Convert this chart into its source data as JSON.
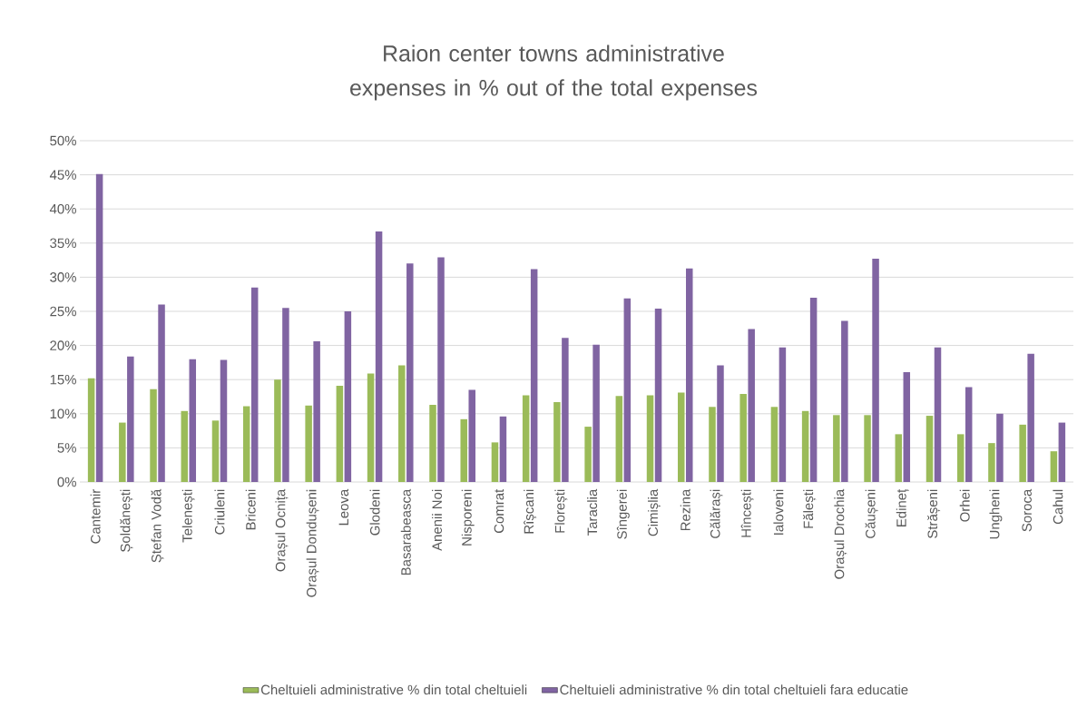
{
  "chart_data": {
    "type": "bar",
    "title": "Raion center towns administrative expenses in % out of the total expenses",
    "categories": [
      "Cantemir",
      "Șoldănești",
      "Ștefan Vodă",
      "Telenești",
      "Criuleni",
      "Briceni",
      "Orașul Ocnița",
      "Orașul Dondușeni",
      "Leova",
      "Glodeni",
      "Basarabeasca",
      "Anenii Noi",
      "Nisporeni",
      "Comrat",
      "Rîșcani",
      "Florești",
      "Taraclia",
      "Sîngerei",
      "Cimișlia",
      "Rezina",
      "Călărași",
      "Hîncești",
      "Ialoveni",
      "Fălești",
      "Orașul Drochia",
      "Căușeni",
      "Edineț",
      "Strășeni",
      "Orhei",
      "Ungheni",
      "Soroca",
      "Cahul"
    ],
    "series": [
      {
        "name": "Cheltuieli administrative % din total cheltuieli",
        "color": "#9bbb59",
        "values": [
          15.2,
          8.7,
          13.6,
          10.4,
          9.0,
          11.1,
          15.0,
          11.2,
          14.1,
          15.9,
          17.1,
          11.3,
          9.2,
          5.8,
          12.7,
          11.7,
          8.1,
          12.6,
          12.7,
          13.1,
          11.0,
          12.9,
          11.0,
          10.4,
          9.8,
          9.8,
          7.0,
          9.7,
          7.0,
          5.7,
          8.4,
          4.5
        ]
      },
      {
        "name": "Cheltuieli administrative % din total cheltuieli fara educatie",
        "color": "#8064a2",
        "values": [
          45.1,
          18.4,
          26.0,
          18.0,
          17.9,
          28.5,
          25.5,
          20.6,
          25.0,
          36.7,
          32.0,
          32.9,
          13.5,
          9.6,
          31.2,
          21.1,
          20.1,
          26.9,
          25.4,
          31.3,
          17.1,
          22.4,
          19.7,
          27.0,
          23.6,
          32.7,
          16.1,
          19.7,
          13.9,
          10.0,
          18.8,
          8.7
        ]
      }
    ],
    "ylim": [
      0,
      50
    ],
    "yticks": [
      {
        "value": 0,
        "label": "0%"
      },
      {
        "value": 5,
        "label": "5%"
      },
      {
        "value": 10,
        "label": "10%"
      },
      {
        "value": 15,
        "label": "15%"
      },
      {
        "value": 20,
        "label": "20%"
      },
      {
        "value": 25,
        "label": "25%"
      },
      {
        "value": 30,
        "label": "30%"
      },
      {
        "value": 35,
        "label": "35%"
      },
      {
        "value": 40,
        "label": "40%"
      },
      {
        "value": 45,
        "label": "45%"
      },
      {
        "value": 50,
        "label": "50%"
      }
    ],
    "grid": "y",
    "legend": "bottom"
  }
}
